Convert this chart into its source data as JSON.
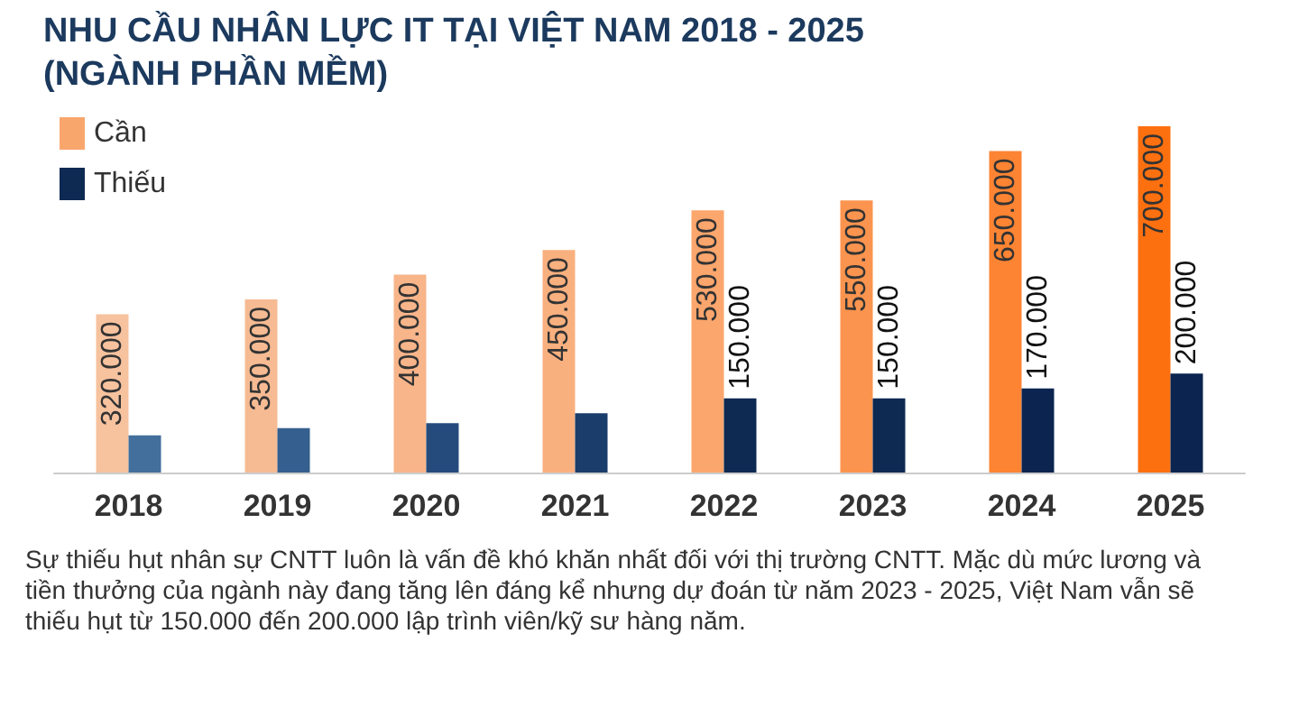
{
  "chart_data": {
    "type": "bar",
    "title": "NHU CẦU NHÂN LỰC IT TẠI VIỆT NAM 2018 - 2025\n(NGÀNH PHẦN MỀM)",
    "categories": [
      "2018",
      "2019",
      "2020",
      "2021",
      "2022",
      "2023",
      "2024",
      "2025"
    ],
    "series": [
      {
        "name": "Cần",
        "color": "#f9a66d",
        "colors": [
          "#f7c29e",
          "#f6bb93",
          "#f8b58a",
          "#f9b07f",
          "#fba66d",
          "#fb944f",
          "#fc8433",
          "#fd7010"
        ],
        "values": [
          320000,
          350000,
          400000,
          450000,
          530000,
          550000,
          650000,
          700000
        ],
        "value_labels": [
          "320.000",
          "350.000",
          "400.000",
          "450.000",
          "530.000",
          "550.000",
          "650.000",
          "700.000"
        ]
      },
      {
        "name": "Thiếu",
        "color": "#0f2a52",
        "colors": [
          "#436f9c",
          "#355f8e",
          "#244b7c",
          "#1a3d6b",
          "#0f2a52",
          "#0f2a52",
          "#0c2550",
          "#0b2450"
        ],
        "values": [
          75000,
          90000,
          100000,
          120000,
          150000,
          150000,
          170000,
          200000
        ],
        "value_labels": [
          null,
          null,
          null,
          null,
          "150.000",
          "150.000",
          "170.000",
          "200.000"
        ]
      }
    ],
    "legend": "top left",
    "annotations": [
      "Sự thiếu hụt nhân sự CNTT luôn là vấn đề khó khăn nhất đối với thị trường CNTT. Mặc dù mức lương và tiền thưởng của ngành này đang tăng lên đáng kể nhưng dự đoán từ năm 2023 - 2025, Việt Nam vẫn sẽ thiếu hụt từ 150.000 đến 200.000 lập trình viên/kỹ sư hàng năm."
    ]
  }
}
